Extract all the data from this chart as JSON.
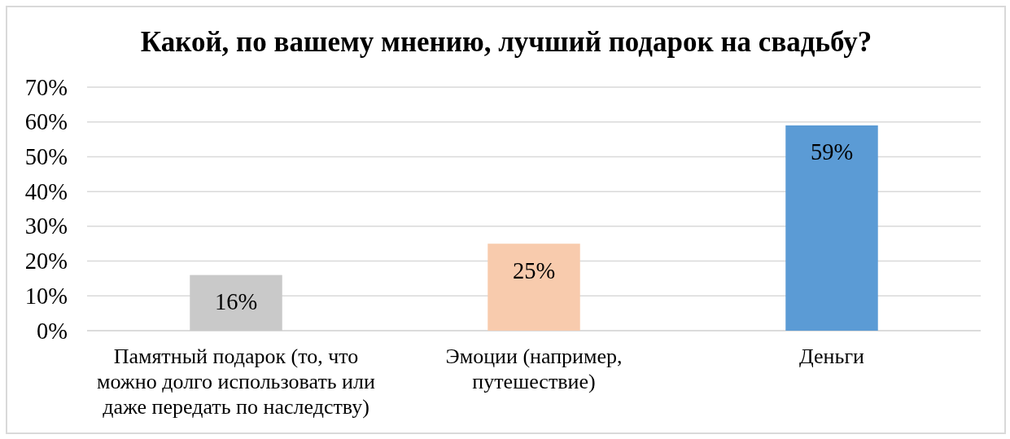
{
  "chart_data": {
    "type": "bar",
    "title": "Какой, по вашему мнению, лучший подарок на свадьбу?",
    "categories": [
      "Памятный подарок (то, что можно долго использовать или даже передать по наследству)",
      "Эмоции (например, путешествие)",
      "Деньги"
    ],
    "values": [
      16,
      25,
      59
    ],
    "colors": [
      "#c9c9c9",
      "#f8cbad",
      "#5b9bd5"
    ],
    "value_labels": [
      "16%",
      "25%",
      "59%"
    ],
    "ylim": [
      0,
      70
    ],
    "yticks": [
      {
        "value": 0,
        "label": "0%"
      },
      {
        "value": 10,
        "label": "10%"
      },
      {
        "value": 20,
        "label": "20%"
      },
      {
        "value": 30,
        "label": "30%"
      },
      {
        "value": 40,
        "label": "40%"
      },
      {
        "value": 50,
        "label": "50%"
      },
      {
        "value": 60,
        "label": "60%"
      },
      {
        "value": 70,
        "label": "70%"
      }
    ],
    "grid": "y"
  }
}
